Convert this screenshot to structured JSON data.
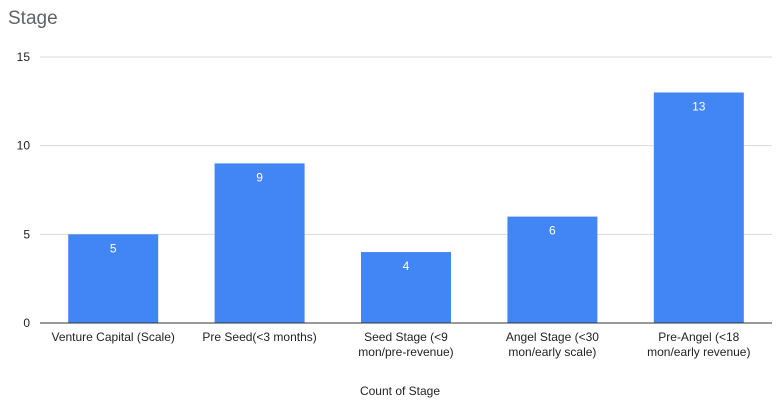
{
  "chart_data": {
    "type": "bar",
    "title": "Stage",
    "xlabel": "Count of Stage",
    "ylabel": "",
    "categories": [
      [
        "Venture Capital (Scale)"
      ],
      [
        "Pre Seed(<3 months)"
      ],
      [
        "Seed Stage (<9",
        "mon/pre-revenue)"
      ],
      [
        "Angel Stage (<30",
        "mon/early scale)"
      ],
      [
        "Pre-Angel  (<18",
        "mon/early revenue)"
      ]
    ],
    "values": [
      5,
      9,
      4,
      6,
      13
    ],
    "ylim": [
      0,
      15
    ],
    "yticks": [
      0,
      5,
      10,
      15
    ],
    "grid": true,
    "legend": "none",
    "colors": {
      "bar": "#4285f4",
      "grid": "#d9d9d9",
      "axis": "#333333",
      "text": "#222222",
      "value_label": "#ffffff"
    }
  }
}
